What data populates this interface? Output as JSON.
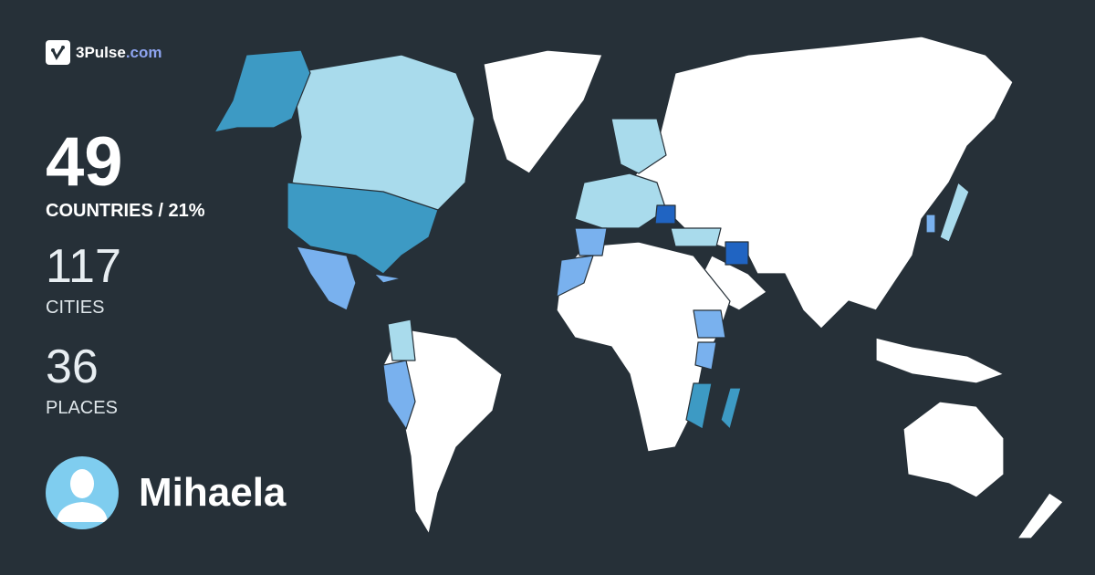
{
  "brand": {
    "name": "3Pulse",
    "tld": ".com"
  },
  "stats": {
    "countries_value": "49",
    "countries_label": "COUNTRIES / 21%",
    "cities_value": "117",
    "cities_label": "CITIES",
    "places_value": "36",
    "places_label": "PLACES"
  },
  "user": {
    "name": "Mihaela",
    "avatar_icon": "user-silhouette-icon"
  },
  "map": {
    "colors": {
      "background": "#263038",
      "unvisited": "#ffffff",
      "light": "#a9dbec",
      "medium": "#3d9ac4",
      "blue": "#79b1ee",
      "dark": "#2064c2"
    }
  }
}
